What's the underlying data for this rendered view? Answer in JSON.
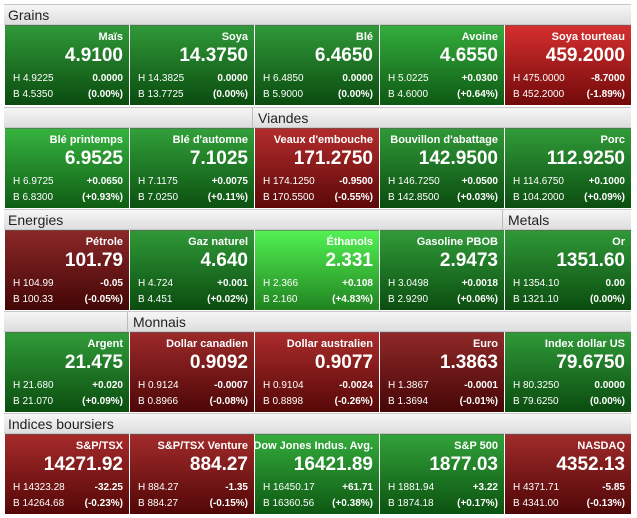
{
  "sections": [
    [
      "Grains"
    ],
    [
      "Viandes"
    ],
    [
      "Energies",
      "Metals"
    ],
    [
      "Monnais"
    ],
    [
      "Indices boursiers"
    ]
  ],
  "tiles": [
    [
      {
        "name": "Maïs",
        "price": "4.9100",
        "high": "H 4.9225",
        "change": "0.0000",
        "low": "B 4.5350",
        "pct": "(0.00%)",
        "color": "#138a1c"
      },
      {
        "name": "Soya",
        "price": "14.3750",
        "high": "H 14.3825",
        "change": "0.0000",
        "low": "B 13.7725",
        "pct": "(0.00%)",
        "color": "#138a1c"
      },
      {
        "name": "Blé",
        "price": "6.4650",
        "high": "H 6.4850",
        "change": "0.0000",
        "low": "B 5.9000",
        "pct": "(0.00%)",
        "color": "#138a1c"
      },
      {
        "name": "Avoine",
        "price": "4.6550",
        "high": "H 5.0225",
        "change": "+0.0300",
        "low": "B 4.6000",
        "pct": "(+0.64%)",
        "color": "#18a222"
      },
      {
        "name": "Soya tourteau",
        "price": "459.2000",
        "high": "H 475.0000",
        "change": "-8.7000",
        "low": "B 452.2000",
        "pct": "(-1.89%)",
        "color": "#cf1212"
      }
    ],
    [
      {
        "name": "Blé printemps",
        "price": "6.9525",
        "high": "H 6.9725",
        "change": "+0.0650",
        "low": "B 6.8300",
        "pct": "(+0.93%)",
        "color": "#1aa824"
      },
      {
        "name": "Blé d'automne",
        "price": "7.1025",
        "high": "H 7.1175",
        "change": "+0.0075",
        "low": "B 7.0250",
        "pct": "(+0.11%)",
        "color": "#15921e"
      },
      {
        "name": "Veaux d'embouche",
        "price": "171.2750",
        "high": "H 174.1250",
        "change": "-0.9500",
        "low": "B 170.5500",
        "pct": "(-0.55%)",
        "color": "#a80f0f"
      },
      {
        "name": "Bouvillon d'abattage",
        "price": "142.9500",
        "high": "H 146.7250",
        "change": "+0.0500",
        "low": "B 142.8500",
        "pct": "(+0.03%)",
        "color": "#138a1c"
      },
      {
        "name": "Porc",
        "price": "112.9250",
        "high": "H 114.6750",
        "change": "+0.1000",
        "low": "B 104.2000",
        "pct": "(+0.09%)",
        "color": "#148d1d"
      }
    ],
    [
      {
        "name": "Pétrole",
        "price": "101.79",
        "high": "H 104.99",
        "change": "-0.05",
        "low": "B 100.33",
        "pct": "(-0.05%)",
        "color": "#7a0a0a"
      },
      {
        "name": "Gaz naturel",
        "price": "4.640",
        "high": "H 4.724",
        "change": "+0.001",
        "low": "B 4.451",
        "pct": "(+0.02%)",
        "color": "#138a1c"
      },
      {
        "name": "Éthanols",
        "price": "2.331",
        "high": "H 2.366",
        "change": "+0.108",
        "low": "B 2.160",
        "pct": "(+4.83%)",
        "color": "#3aef3a"
      },
      {
        "name": "Gasoline PBOB",
        "price": "2.9473",
        "high": "H 3.0498",
        "change": "+0.0018",
        "low": "B 2.9290",
        "pct": "(+0.06%)",
        "color": "#148d1d"
      },
      {
        "name": "Or",
        "price": "1351.60",
        "high": "H 1354.10",
        "change": "0.00",
        "low": "B 1321.10",
        "pct": "(0.00%)",
        "color": "#138a1c"
      }
    ],
    [
      {
        "name": "Argent",
        "price": "21.475",
        "high": "H 21.680",
        "change": "+0.020",
        "low": "B 21.070",
        "pct": "(+0.09%)",
        "color": "#148d1d"
      },
      {
        "name": "Dollar canadien",
        "price": "0.9092",
        "high": "H 0.9124",
        "change": "-0.0007",
        "low": "B 0.8966",
        "pct": "(-0.08%)",
        "color": "#8e0c0c"
      },
      {
        "name": "Dollar australien",
        "price": "0.9077",
        "high": "H 0.9104",
        "change": "-0.0024",
        "low": "B 0.8898",
        "pct": "(-0.26%)",
        "color": "#9e0e0e"
      },
      {
        "name": "Euro",
        "price": "1.3863",
        "high": "H 1.3867",
        "change": "-0.0001",
        "low": "B 1.3694",
        "pct": "(-0.01%)",
        "color": "#800b0b"
      },
      {
        "name": "Index dollar US",
        "price": "79.6750",
        "high": "H 80.3250",
        "change": "0.0000",
        "low": "B 79.6250",
        "pct": "(0.00%)",
        "color": "#138a1c"
      }
    ],
    [
      {
        "name": "S&P/TSX",
        "price": "14271.92",
        "high": "H 14323.28",
        "change": "-32.25",
        "low": "B 14264.68",
        "pct": "(-0.23%)",
        "color": "#9a0d0d"
      },
      {
        "name": "S&P/TSX Venture",
        "price": "884.27",
        "high": "H 884.27",
        "change": "-1.35",
        "low": "B 884.27",
        "pct": "(-0.15%)",
        "color": "#950d0d"
      },
      {
        "name": "Dow Jones Indus. Avg.",
        "price": "16421.89",
        "high": "H 16450.17",
        "change": "+61.71",
        "low": "B 16360.56",
        "pct": "(+0.38%)",
        "color": "#18a021"
      },
      {
        "name": "S&P 500",
        "price": "1877.03",
        "high": "H 1881.94",
        "change": "+3.22",
        "low": "B 1874.18",
        "pct": "(+0.17%)",
        "color": "#15951e"
      },
      {
        "name": "NASDAQ",
        "price": "4352.13",
        "high": "H 4371.71",
        "change": "-5.85",
        "low": "B 4341.00",
        "pct": "(-0.13%)",
        "color": "#920d0d"
      }
    ]
  ]
}
